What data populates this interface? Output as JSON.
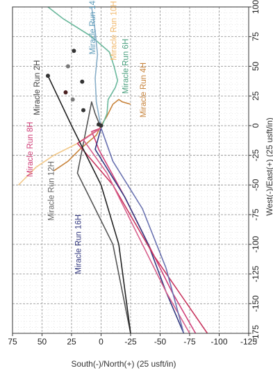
{
  "chart_data": {
    "type": "line",
    "orientation": "rotated-90-ccw",
    "xlabel": "West(-)/East(+) (25 usft/in)",
    "ylabel": "South(-)/North(+) (25 usft/in)",
    "xlim": [
      -175,
      100
    ],
    "ylim": [
      -125,
      75
    ],
    "x_ticks": [
      -175,
      -150,
      -125,
      -100,
      -75,
      -50,
      -25,
      0,
      25,
      50,
      75,
      100
    ],
    "y_ticks": [
      -125,
      -100,
      -75,
      -50,
      -25,
      0,
      25,
      50,
      75
    ],
    "grid": true,
    "series": [
      {
        "name": "Miracle Run 2H",
        "color": "#c8843c",
        "points": [
          [
            0,
            0
          ],
          [
            -8,
            4
          ],
          [
            -20,
            18
          ],
          [
            -30,
            28
          ],
          [
            -38,
            40
          ]
        ]
      },
      {
        "name": "Miracle Run 4H",
        "color": "#c8843c",
        "points": [
          [
            0,
            0
          ],
          [
            8,
            -5
          ],
          [
            18,
            -10
          ],
          [
            22,
            -15
          ],
          [
            20,
            -18
          ],
          [
            18,
            -25
          ]
        ]
      },
      {
        "name": "Miracle Run 6H",
        "color": "#6ab89c",
        "points": [
          [
            -2,
            0
          ],
          [
            10,
            -5
          ],
          [
            22,
            -6
          ],
          [
            32,
            -12
          ],
          [
            38,
            -14
          ],
          [
            50,
            -11
          ],
          [
            62,
            -7
          ],
          [
            75,
            8
          ],
          [
            90,
            32
          ],
          [
            100,
            45
          ]
        ]
      },
      {
        "name": "Miracle Run 8H",
        "color": "#d0407a",
        "points": [
          [
            -2,
            0
          ],
          [
            -5,
            8
          ],
          [
            -12,
            5
          ],
          [
            -20,
            2
          ],
          [
            -60,
            -20
          ],
          [
            -100,
            -40
          ],
          [
            -140,
            -60
          ],
          [
            -175,
            -80
          ]
        ]
      },
      {
        "name": "Miracle Run 10H",
        "color": "#f2c98a",
        "points": [
          [
            -2,
            0
          ],
          [
            -8,
            10
          ],
          [
            -15,
            20
          ],
          [
            -25,
            40
          ],
          [
            -35,
            55
          ],
          [
            -50,
            70
          ]
        ]
      },
      {
        "name": "Miracle Run 12H",
        "color": "#555555",
        "points": [
          [
            -2,
            0
          ],
          [
            10,
            5
          ],
          [
            20,
            8
          ],
          [
            -40,
            20
          ],
          [
            -100,
            -10
          ],
          [
            -175,
            -25
          ]
        ]
      },
      {
        "name": "Miracle Run 14H",
        "color": "#88aec8",
        "points": [
          [
            -2,
            0
          ],
          [
            20,
            4
          ],
          [
            40,
            5
          ],
          [
            60,
            3
          ],
          [
            80,
            5
          ],
          [
            100,
            8
          ]
        ]
      },
      {
        "name": "Miracle Run 16H",
        "color": "#343a80",
        "points": [
          [
            -2,
            0
          ],
          [
            -20,
            5
          ],
          [
            -60,
            -20
          ],
          [
            -100,
            -40
          ],
          [
            -140,
            -55
          ],
          [
            -175,
            -70
          ]
        ]
      },
      {
        "name": "",
        "color": "#c8365f",
        "points": [
          [
            -2,
            0
          ],
          [
            -15,
            20
          ],
          [
            -50,
            -10
          ],
          [
            -110,
            -45
          ],
          [
            -175,
            -90
          ]
        ]
      },
      {
        "name": "",
        "color": "#d85f8c",
        "points": [
          [
            -2,
            0
          ],
          [
            -12,
            15
          ],
          [
            -40,
            -5
          ],
          [
            -90,
            -30
          ],
          [
            -140,
            -55
          ],
          [
            -175,
            -75
          ]
        ]
      },
      {
        "name": "",
        "color": "#222222",
        "points": [
          [
            42,
            45
          ],
          [
            0,
            25
          ],
          [
            -50,
            0
          ],
          [
            -100,
            -15
          ],
          [
            -175,
            -25
          ]
        ]
      },
      {
        "name": "",
        "color": "#6a72b0",
        "points": [
          [
            -2,
            0
          ],
          [
            -30,
            -10
          ],
          [
            -70,
            -35
          ],
          [
            -120,
            -55
          ],
          [
            -175,
            -70
          ]
        ]
      }
    ],
    "markers": [
      {
        "x": 0,
        "y": 0,
        "color": "#333333"
      },
      {
        "x": 1,
        "y": 2,
        "color": "#333333"
      },
      {
        "x": 42,
        "y": 45,
        "color": "#333333"
      },
      {
        "x": 28,
        "y": 30,
        "color": "#4a2020"
      },
      {
        "x": 13,
        "y": 15,
        "color": "#333333"
      },
      {
        "x": 37,
        "y": 16,
        "color": "#333333"
      },
      {
        "x": 63,
        "y": 23,
        "color": "#333333"
      },
      {
        "x": 50,
        "y": 28,
        "color": "#7a7a7a"
      },
      {
        "x": 22,
        "y": 24,
        "color": "#7a7a7a"
      }
    ],
    "labels": [
      {
        "text": "Miracle Run 2H",
        "x": 32,
        "y": 52,
        "color": "#444444"
      },
      {
        "text": "Miracle Run 4H",
        "x": 30,
        "y": -38,
        "color": "#c8843c"
      },
      {
        "text": "Miracle Run 6H",
        "x": 50,
        "y": -23,
        "color": "#4aa07e"
      },
      {
        "text": "Miracle Run 8H",
        "x": -20,
        "y": 58,
        "color": "#d0407a"
      },
      {
        "text": "Miracle Run 10H",
        "x": 80,
        "y": -13,
        "color": "#f2b86a"
      },
      {
        "text": "Miracle Run 12H",
        "x": -55,
        "y": 40,
        "color": "#666666"
      },
      {
        "text": "Miracle Run 14H",
        "x": 85,
        "y": 5,
        "color": "#5a9ab8"
      },
      {
        "text": "Miracle Run 16H",
        "x": -100,
        "y": 17,
        "color": "#343a80"
      }
    ]
  }
}
